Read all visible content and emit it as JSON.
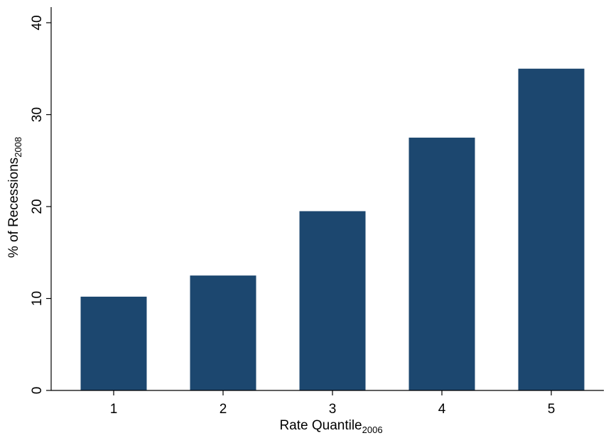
{
  "chart_data": {
    "type": "bar",
    "categories": [
      "1",
      "2",
      "3",
      "4",
      "5"
    ],
    "values": [
      10.2,
      12.5,
      19.5,
      27.5,
      35.0
    ],
    "bar_color": "#1c476f",
    "xlabel": {
      "text": "Rate Quantile",
      "subscript": "2006"
    },
    "ylabel": {
      "text": "% of Recessions",
      "subscript": "2008"
    },
    "ylim": [
      0,
      41
    ],
    "yticks": [
      "0",
      "10",
      "20",
      "30",
      "40"
    ],
    "grid": false,
    "legend": "none"
  }
}
